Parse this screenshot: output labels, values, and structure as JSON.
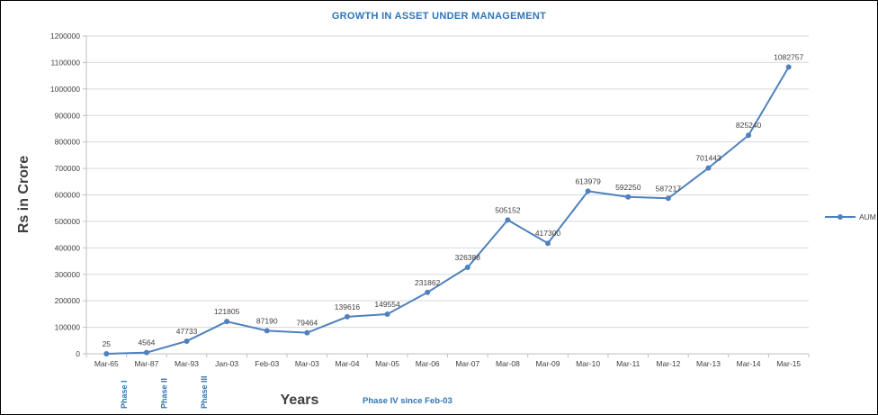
{
  "chart_data": {
    "type": "line",
    "title": "GROWTH IN ASSET UNDER MANAGEMENT",
    "xlabel": "Years",
    "ylabel": "Rs in Crore",
    "categories": [
      "Mar-65",
      "Mar-87",
      "Mar-93",
      "Jan-03",
      "Feb-03",
      "Mar-03",
      "Mar-04",
      "Mar-05",
      "Mar-06",
      "Mar-07",
      "Mar-08",
      "Mar-09",
      "Mar-10",
      "Mar-11",
      "Mar-12",
      "Mar-13",
      "Mar-14",
      "Mar-15"
    ],
    "series": [
      {
        "name": "AUM",
        "values": [
          25,
          4564,
          47733,
          121805,
          87190,
          79464,
          139616,
          149554,
          231862,
          326388,
          505152,
          417300,
          613979,
          592250,
          587217,
          701443,
          825240,
          1082757
        ]
      }
    ],
    "ylim": [
      0,
      1200000
    ],
    "ytick_step": 100000,
    "grid": true,
    "legend_position": "right",
    "annotations": {
      "rotated": [
        {
          "label": "Phase I",
          "category_index": 1
        },
        {
          "label": "Phase II",
          "category_index": 2
        },
        {
          "label": "Phase III",
          "category_index": 3
        }
      ],
      "note": "Phase IV since Feb-03"
    },
    "colors": {
      "line": "#4F81BD",
      "title": "#2E75B6",
      "axis_text": "#404040",
      "grid": "#D9D9D9",
      "axis_line": "#BFBFBF"
    }
  }
}
